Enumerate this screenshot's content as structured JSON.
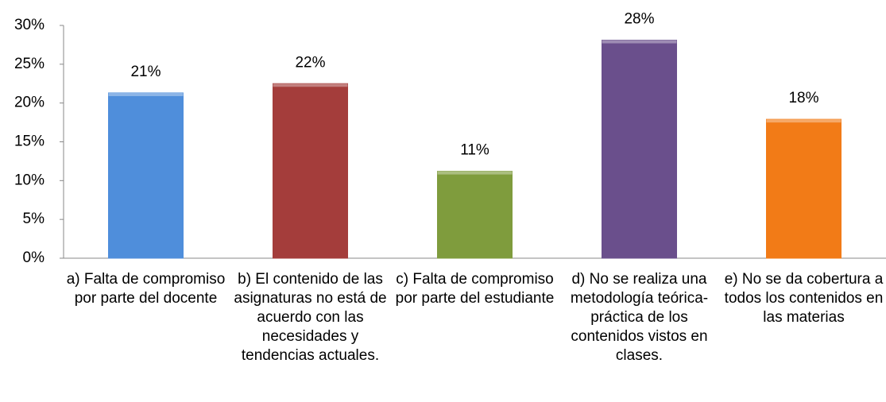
{
  "chart_data": {
    "type": "bar",
    "categories": [
      "a) Falta de compromiso por parte del docente",
      "b) El contenido de las asignaturas no está de acuerdo con las necesidades y tendencias actuales.",
      "c) Falta de compromiso por parte del estudiante",
      "d) No se realiza una metodología teórica-práctica de los contenidos vistos en clases.",
      "e) No se da cobertura a todos los contenidos en las materias"
    ],
    "values": [
      21.3,
      22.5,
      11.2,
      28.1,
      17.9
    ],
    "value_labels": [
      "21%",
      "22%",
      "11%",
      "28%",
      "18%"
    ],
    "colors": [
      "#4f8edb",
      "#a43d3b",
      "#7f9c3d",
      "#6a4f8c",
      "#f27b17"
    ],
    "ylim": [
      0,
      30
    ],
    "yticks": [
      {
        "value": 0,
        "label": "0%"
      },
      {
        "value": 5,
        "label": "5%"
      },
      {
        "value": 10,
        "label": "10%"
      },
      {
        "value": 15,
        "label": "15%"
      },
      {
        "value": 20,
        "label": "20%"
      },
      {
        "value": 25,
        "label": "25%"
      },
      {
        "value": 30,
        "label": "30%"
      }
    ]
  }
}
